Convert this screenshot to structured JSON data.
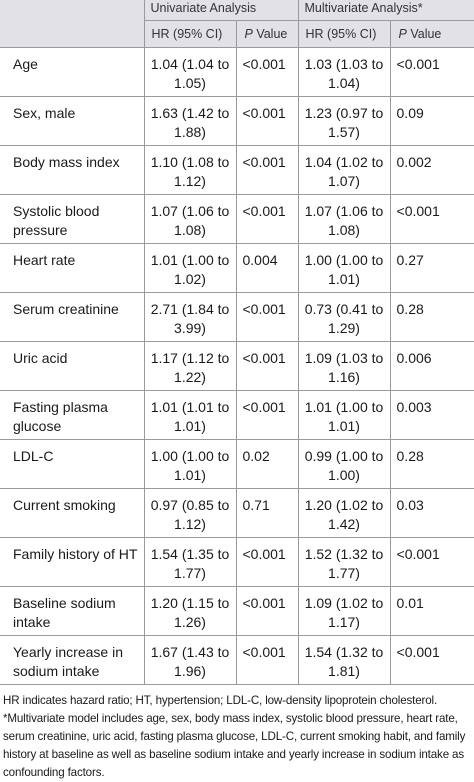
{
  "header": {
    "group1": "Univariate Analysis",
    "group2": "Multivariate Analysis*",
    "hr_label": "HR (95% CI)",
    "p_italic": "P",
    "p_rest": " Value"
  },
  "rows": [
    {
      "name": "Age",
      "uni_hr": "1.04 (1.04 to 1.05)",
      "uni_p": "<0.001",
      "multi_hr": "1.03 (1.03 to 1.04)",
      "multi_p": "<0.001"
    },
    {
      "name": "Sex, male",
      "uni_hr": "1.63 (1.42 to 1.88)",
      "uni_p": "<0.001",
      "multi_hr": "1.23 (0.97 to 1.57)",
      "multi_p": "0.09"
    },
    {
      "name": "Body mass index",
      "uni_hr": "1.10 (1.08 to 1.12)",
      "uni_p": "<0.001",
      "multi_hr": "1.04 (1.02 to 1.07)",
      "multi_p": "0.002"
    },
    {
      "name": "Systolic blood pressure",
      "uni_hr": "1.07 (1.06 to 1.08)",
      "uni_p": "<0.001",
      "multi_hr": "1.07 (1.06 to 1.08)",
      "multi_p": "<0.001"
    },
    {
      "name": "Heart rate",
      "uni_hr": "1.01 (1.00 to 1.02)",
      "uni_p": "0.004",
      "multi_hr": "1.00 (1.00 to 1.01)",
      "multi_p": "0.27"
    },
    {
      "name": "Serum creatinine",
      "uni_hr": "2.71 (1.84 to 3.99)",
      "uni_p": "<0.001",
      "multi_hr": "0.73 (0.41 to 1.29)",
      "multi_p": "0.28"
    },
    {
      "name": "Uric acid",
      "uni_hr": "1.17 (1.12 to 1.22)",
      "uni_p": "<0.001",
      "multi_hr": "1.09 (1.03 to 1.16)",
      "multi_p": "0.006"
    },
    {
      "name": "Fasting plasma glucose",
      "uni_hr": "1.01 (1.01 to 1.01)",
      "uni_p": "<0.001",
      "multi_hr": "1.01 (1.00 to 1.01)",
      "multi_p": "0.003"
    },
    {
      "name": "LDL-C",
      "uni_hr": "1.00 (1.00 to 1.01)",
      "uni_p": "0.02",
      "multi_hr": "0.99 (1.00 to 1.00)",
      "multi_p": "0.28"
    },
    {
      "name": "Current smoking",
      "uni_hr": "0.97 (0.85 to 1.12)",
      "uni_p": "0.71",
      "multi_hr": "1.20 (1.02 to 1.42)",
      "multi_p": "0.03"
    },
    {
      "name": "Family history of HT",
      "uni_hr": "1.54 (1.35 to 1.77)",
      "uni_p": "<0.001",
      "multi_hr": "1.52 (1.32 to 1.77)",
      "multi_p": "<0.001"
    },
    {
      "name": "Baseline sodium intake",
      "uni_hr": "1.20 (1.15 to 1.26)",
      "uni_p": "<0.001",
      "multi_hr": "1.09 (1.02 to 1.17)",
      "multi_p": "0.01"
    },
    {
      "name": "Yearly increase in sodium intake",
      "uni_hr": "1.67 (1.43 to 1.96)",
      "uni_p": "<0.001",
      "multi_hr": "1.54 (1.32 to 1.81)",
      "multi_p": "<0.001"
    }
  ],
  "footnotes": {
    "abbrev": "HR indicates hazard ratio; HT, hypertension; LDL-C, low-density lipoprotein cholesterol.",
    "multivariate": "*Multivariate model includes age, sex, body mass index, systolic blood pressure, heart rate, serum creatinine, uric acid, fasting plasma glucose, LDL-C, current smoking habit, and family history at baseline as well as baseline sodium intake and yearly increase in sodium intake as confounding factors."
  },
  "colors": {
    "header_bg": "#e3e1e8",
    "rule": "#9a9a9a",
    "text": "#1a1a1a"
  }
}
